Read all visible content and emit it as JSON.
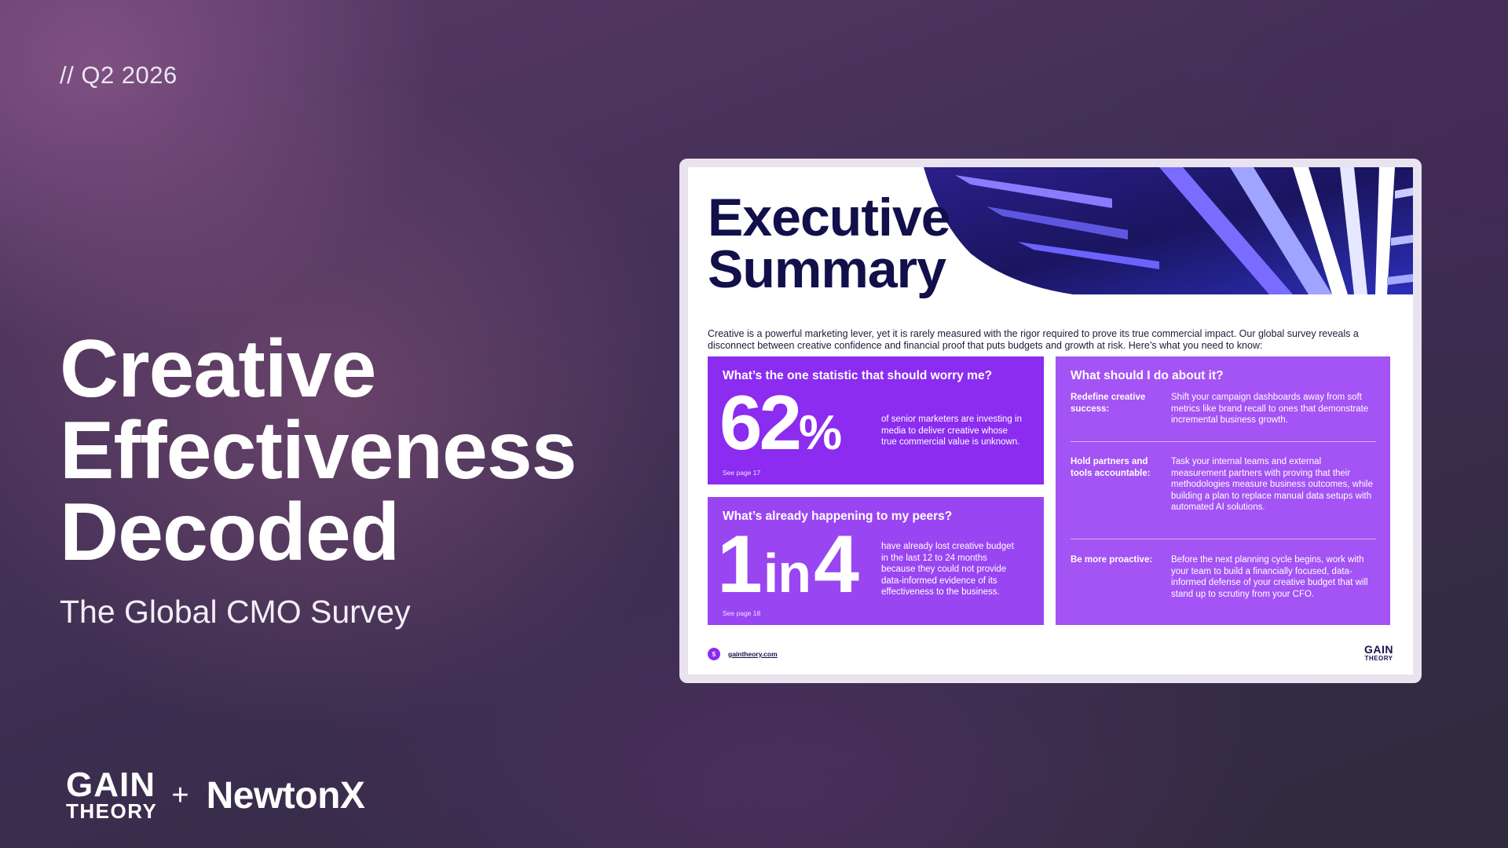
{
  "quarter": "// Q2 2026",
  "hero": {
    "title_lines": [
      "Creative",
      "Effectiveness",
      "Decoded"
    ],
    "subtitle": "The Global CMO Survey"
  },
  "brands": {
    "gain_line1": "GAIN",
    "gain_line2": "THEORY",
    "plus": "+",
    "partner": "NewtonX"
  },
  "report": {
    "title_lines": [
      "Executive",
      "Summary"
    ],
    "intro": "Creative is a powerful marketing lever, yet it is rarely measured with the rigor required to prove its true commercial impact. Our global survey reveals a disconnect between creative confidence and financial proof that puts budgets and growth at risk. Here’s what you need to know:",
    "stat_panel": {
      "question": "What’s the one statistic that should worry me?",
      "number": "62",
      "unit": "%",
      "text": "of senior marketers are investing in media to deliver creative whose true commercial value is unknown.",
      "see": "See page 17"
    },
    "peer_panel": {
      "question": "What’s already happening to my peers?",
      "ratio_a": "1",
      "ratio_in": "in",
      "ratio_b": "4",
      "text": "have already lost creative budget in the last 12 to 24 months because they could not provide data-informed evidence of its effectiveness to the business.",
      "see": "See page 18"
    },
    "action_panel": {
      "question": "What should I do about it?",
      "rows": [
        {
          "label": "Redefine creative success:",
          "text": "Shift your campaign dashboards away from soft metrics like brand recall to ones that demonstrate incremental business growth."
        },
        {
          "label": "Hold partners and tools accountable:",
          "text": "Task your internal teams and external measurement partners with proving that their methodologies measure business outcomes, while building a plan to replace manual data setups with automated AI solutions."
        },
        {
          "label": "Be more proactive:",
          "text": "Before the next planning cycle begins, work with your team to build a financially focused, data-informed defense of your creative budget that will stand up to scrutiny from your CFO."
        }
      ]
    },
    "footer": {
      "page": "5",
      "site": "gaintheory.com",
      "logo_line1": "GAIN",
      "logo_line2": "THEORY"
    }
  },
  "colors": {
    "accent_purple": "#8b2cf0",
    "light_purple": "#a453f4",
    "navy": "#12104a"
  }
}
